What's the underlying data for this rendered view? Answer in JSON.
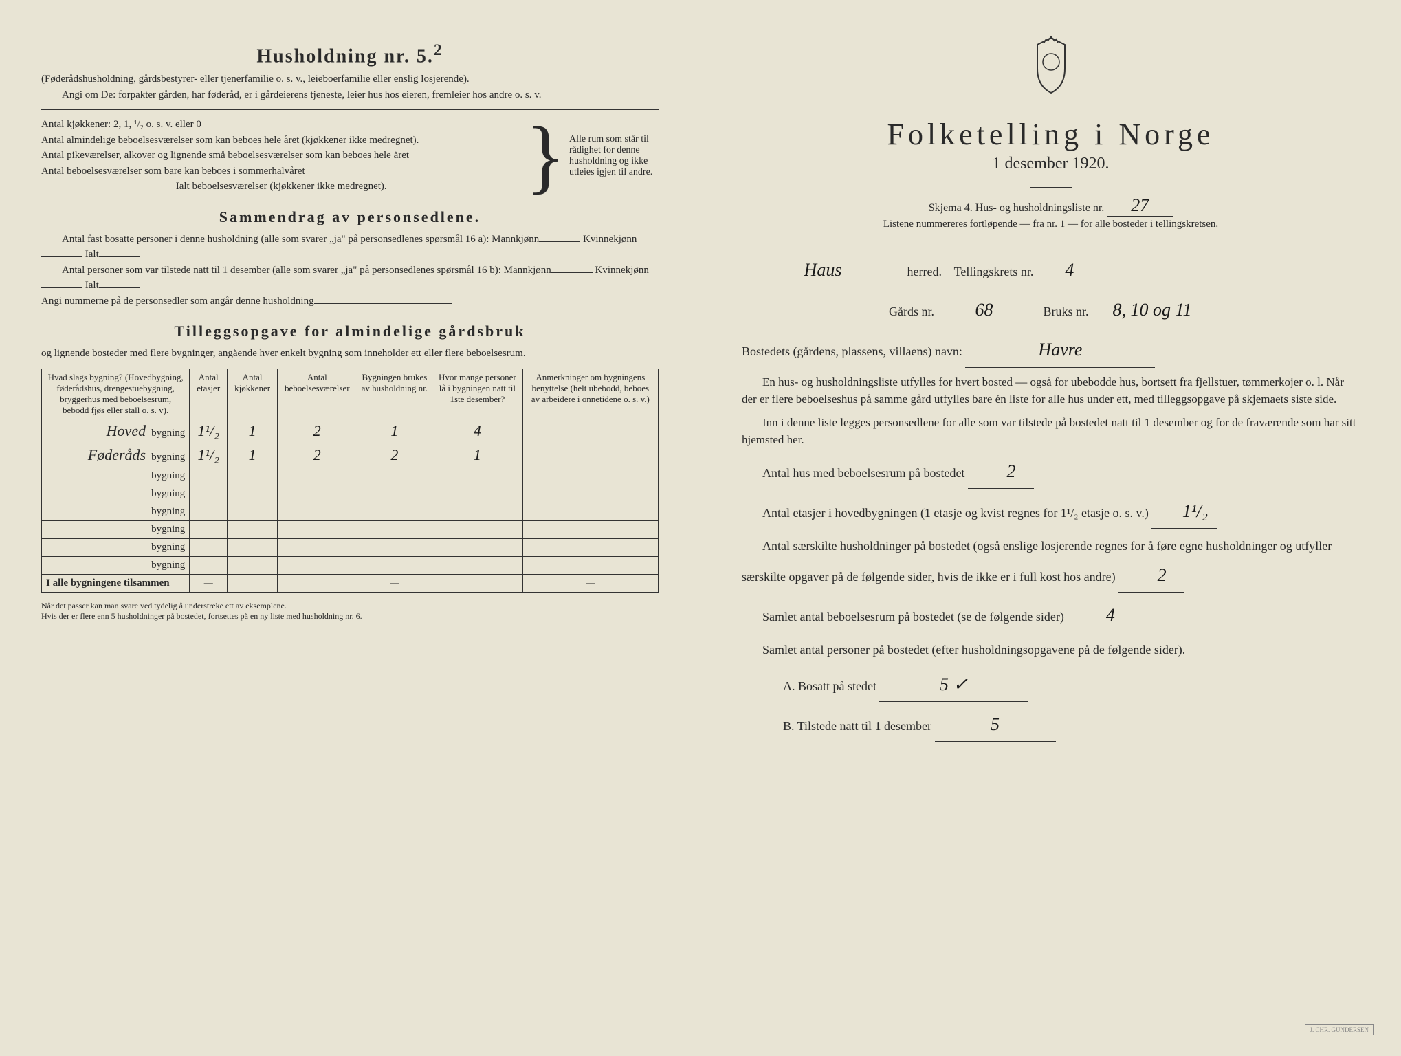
{
  "left": {
    "title": "Husholdning nr. 5.",
    "title_sup": "2",
    "intro1": "(Føderådshusholdning, gårdsbestyrer- eller tjenerfamilie o. s. v., leieboerfamilie eller enslig losjerende).",
    "intro2": "Angi om De: forpakter gården, har føderåd, er i gårdeierens tjeneste, leier hus hos eieren, fremleier hos andre o. s. v.",
    "line_kitchen": "Antal kjøkkener: 2, 1, ¹/₂ o. s. v. eller 0",
    "line_rooms1": "Antal almindelige beboelsesværelser som kan beboes hele året (kjøkkener ikke medregnet).",
    "line_rooms2": "Antal pikeværelser, alkover og lignende små beboelsesværelser som kan beboes hele året",
    "line_rooms3": "Antal beboelsesværelser som bare kan beboes i sommerhalvåret",
    "line_total": "Ialt beboelsesværelser (kjøkkener ikke medregnet).",
    "bracket_text": "Alle rum som står til rådighet for denne husholdning og ikke utleies igjen til andre.",
    "summary_title": "Sammendrag av personsedlene.",
    "summary1": "Antal fast bosatte personer i denne husholdning (alle som svarer „ja\" på personsedlenes spørsmål 16 a): Mannkjønn",
    "summary1b": "Kvinnekjønn",
    "summary1c": "Ialt",
    "summary2": "Antal personer som var tilstede natt til 1 desember (alle som svarer „ja\" på personsedlenes spørsmål 16 b): Mannkjønn",
    "summary3": "Angi nummerne på de personsedler som angår denne husholdning",
    "tillegg_title": "Tilleggsopgave for almindelige gårdsbruk",
    "tillegg_sub": "og lignende bosteder med flere bygninger, angående hver enkelt bygning som inneholder ett eller flere beboelsesrum.",
    "table": {
      "headers": [
        "Hvad slags bygning?\n(Hovedbygning, føderådshus, drengestuebygning, bryggerhus med beboelsesrum, bebodd fjøs eller stall o. s. v).",
        "Antal etasjer",
        "Antal kjøkkener",
        "Antal beboelsesværelser",
        "Bygningen brukes av husholdning nr.",
        "Hvor mange personer lå i bygningen natt til 1ste desember?",
        "Anmerkninger om bygningens benyttelse (helt ubebodd, beboes av arbeidere i onnetidene o. s. v.)"
      ],
      "rows": [
        {
          "prefix": "Hoved",
          "suffix": "bygning",
          "cells": [
            "1¹/₂",
            "1",
            "2",
            "1",
            "4",
            ""
          ]
        },
        {
          "prefix": "Føderåds",
          "suffix": "bygning",
          "cells": [
            "1¹/₂",
            "1",
            "2",
            "2",
            "1",
            ""
          ]
        },
        {
          "prefix": "",
          "suffix": "bygning",
          "cells": [
            "",
            "",
            "",
            "",
            "",
            ""
          ]
        },
        {
          "prefix": "",
          "suffix": "bygning",
          "cells": [
            "",
            "",
            "",
            "",
            "",
            ""
          ]
        },
        {
          "prefix": "",
          "suffix": "bygning",
          "cells": [
            "",
            "",
            "",
            "",
            "",
            ""
          ]
        },
        {
          "prefix": "",
          "suffix": "bygning",
          "cells": [
            "",
            "",
            "",
            "",
            "",
            ""
          ]
        },
        {
          "prefix": "",
          "suffix": "bygning",
          "cells": [
            "",
            "",
            "",
            "",
            "",
            ""
          ]
        },
        {
          "prefix": "",
          "suffix": "bygning",
          "cells": [
            "",
            "",
            "",
            "",
            "",
            ""
          ]
        }
      ],
      "footer_label": "I alle bygningene tilsammen",
      "footer_cells": [
        "—",
        "",
        "",
        "—",
        "",
        "—"
      ]
    },
    "footnote": "Når det passer kan man svare ved tydelig å understreke ett av eksemplene.\nHvis der er flere enn 5 husholdninger på bostedet, fortsettes på en ny liste med husholdning nr. 6."
  },
  "right": {
    "title_main": "Folketelling i Norge",
    "title_sub": "1 desember 1920.",
    "schema_line": "Skjema 4. Hus- og husholdningsliste nr.",
    "schema_nr": "27",
    "list_note": "Listene nummereres fortløpende — fra nr. 1 — for alle bosteder i tellingskretsen.",
    "herred_name": "Haus",
    "herred_label": "herred.",
    "krets_label": "Tellingskrets nr.",
    "krets_nr": "4",
    "gards_label": "Gårds nr.",
    "gards_nr": "68",
    "bruks_label": "Bruks nr.",
    "bruks_nr": "8, 10 og 11",
    "bosted_label": "Bostedets (gårdens, plassens, villaens) navn:",
    "bosted_name": "Havre",
    "para1": "En hus- og husholdningsliste utfylles for hvert bosted — også for ubebodde hus, bortsett fra fjellstuer, tømmerkojer o. l. Når der er flere beboelseshus på samme gård utfylles bare én liste for alle hus under ett, med tilleggsopgave på skjemaets siste side.",
    "para2": "Inn i denne liste legges personsedlene for alle som var tilstede på bostedet natt til 1 desember og for de fraværende som har sitt hjemsted her.",
    "q_hus": "Antal hus med beboelsesrum på bostedet",
    "v_hus": "2",
    "q_etasjer_a": "Antal etasjer i hovedbygningen (1 etasje og kvist regnes for 1¹/₂ etasje o. s. v.)",
    "v_etasjer": "1¹/₂",
    "q_hush": "Antal særskilte husholdninger på bostedet (også enslige losjerende regnes for å føre egne husholdninger og utfyller særskilte opgaver på de følgende sider, hvis de ikke er i full kost hos andre)",
    "v_hush": "2",
    "q_rum": "Samlet antal beboelsesrum på bostedet (se de følgende sider)",
    "v_rum": "4",
    "q_pers": "Samlet antal personer på bostedet (efter husholdningsopgavene på de følgende sider).",
    "q_pers_a": "A. Bosatt på stedet",
    "v_pers_a": "5 ✓",
    "q_pers_b": "B. Tilstede natt til 1 desember",
    "v_pers_b": "5"
  }
}
